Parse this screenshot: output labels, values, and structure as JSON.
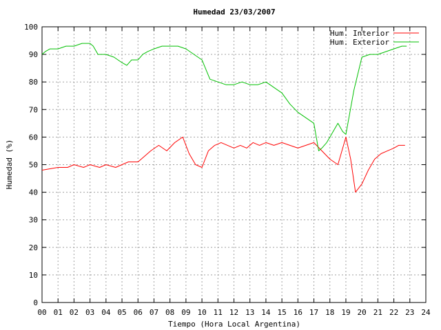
{
  "chart_data": {
    "type": "line",
    "title": "Humedad 23/03/2007",
    "xlabel": "Tiempo (Hora Local Argentina)",
    "ylabel": "Humedad (%)",
    "xlim": [
      0,
      24
    ],
    "ylim": [
      0,
      100
    ],
    "grid": true,
    "legend_position": "top-right",
    "x_ticks": [
      "00",
      "01",
      "02",
      "03",
      "04",
      "05",
      "06",
      "07",
      "08",
      "09",
      "10",
      "11",
      "12",
      "13",
      "14",
      "15",
      "16",
      "17",
      "18",
      "19",
      "20",
      "21",
      "22",
      "23",
      "24"
    ],
    "y_ticks": [
      "0",
      "10",
      "20",
      "30",
      "40",
      "50",
      "60",
      "70",
      "80",
      "90",
      "100"
    ],
    "series": [
      {
        "name": "Hum. Interior",
        "color": "#ff0000",
        "x": [
          0.0,
          1.0,
          1.6,
          2.0,
          2.6,
          3.0,
          3.6,
          4.0,
          4.6,
          5.0,
          5.4,
          6.0,
          6.8,
          7.3,
          7.8,
          8.3,
          8.8,
          9.2,
          9.6,
          10.0,
          10.4,
          10.8,
          11.2,
          11.6,
          12.0,
          12.4,
          12.8,
          13.2,
          13.6,
          14.0,
          14.5,
          15.0,
          15.5,
          16.0,
          16.5,
          17.0,
          17.5,
          18.0,
          18.5,
          19.0,
          19.3,
          19.6,
          20.0,
          20.4,
          20.8,
          21.2,
          21.6,
          22.0,
          22.3,
          22.7
        ],
        "y": [
          48,
          49,
          49,
          50,
          49,
          50,
          49,
          50,
          49,
          50,
          51,
          51,
          55,
          57,
          55,
          58,
          60,
          54,
          50,
          49,
          55,
          57,
          58,
          57,
          56,
          57,
          56,
          58,
          57,
          58,
          57,
          58,
          57,
          56,
          57,
          58,
          55,
          52,
          50,
          60,
          52,
          40,
          43,
          48,
          52,
          54,
          55,
          56,
          57,
          57
        ]
      },
      {
        "name": "Hum. Exterior",
        "color": "#00c000",
        "x": [
          0.0,
          0.2,
          0.5,
          1.0,
          1.5,
          2.0,
          2.5,
          3.0,
          3.2,
          3.5,
          4.0,
          4.5,
          5.0,
          5.3,
          5.6,
          6.0,
          6.3,
          6.6,
          7.0,
          7.5,
          8.0,
          8.5,
          9.0,
          9.5,
          10.0,
          10.5,
          11.0,
          11.5,
          12.0,
          12.5,
          13.0,
          13.5,
          14.0,
          14.5,
          15.0,
          15.5,
          16.0,
          16.5,
          17.0,
          17.3,
          17.5,
          17.8,
          18.0,
          18.5,
          18.8,
          19.0,
          19.5,
          20.0,
          20.5,
          21.0,
          21.5,
          22.0,
          22.5,
          22.8
        ],
        "y": [
          90,
          91,
          92,
          92,
          93,
          93,
          94,
          94,
          93,
          90,
          90,
          89,
          87,
          86,
          88,
          88,
          90,
          91,
          92,
          93,
          93,
          93,
          92,
          90,
          88,
          81,
          80,
          79,
          79,
          80,
          79,
          79,
          80,
          78,
          76,
          72,
          69,
          67,
          65,
          55,
          56,
          58,
          60,
          65,
          62,
          61,
          77,
          89,
          90,
          90,
          91,
          92,
          93,
          93
        ]
      }
    ]
  }
}
